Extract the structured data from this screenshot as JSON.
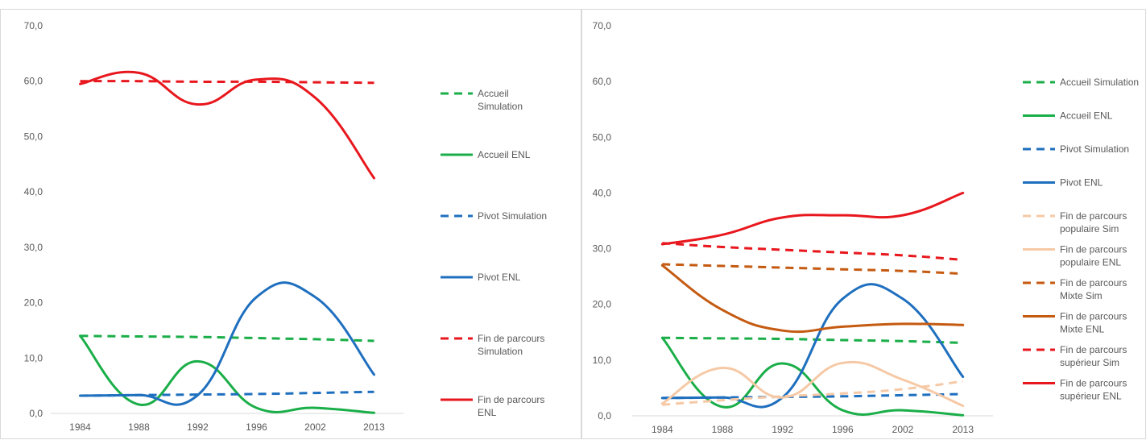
{
  "chart_data": [
    {
      "type": "line",
      "title": "",
      "xlabel": "",
      "ylabel": "",
      "categories": [
        "1984",
        "1988",
        "1992",
        "1996",
        "2002",
        "2013"
      ],
      "ylim": [
        0,
        70
      ],
      "yticks": [
        "0,0",
        "10,0",
        "20,0",
        "30,0",
        "40,0",
        "50,0",
        "60,0",
        "70,0"
      ],
      "grid": false,
      "legend_position": "right",
      "series": [
        {
          "name": "Accueil Simulation",
          "legend_lines": [
            "Accueil",
            "Simulation"
          ],
          "color": "#1aae48",
          "dashed": true,
          "values": [
            14.0,
            13.9,
            13.8,
            13.6,
            13.4,
            13.1
          ]
        },
        {
          "name": "Accueil ENL",
          "legend_lines": [
            "Accueil ENL"
          ],
          "color": "#1aae48",
          "dashed": false,
          "values": [
            14.0,
            1.6,
            9.4,
            1.0,
            1.0,
            0.1
          ]
        },
        {
          "name": "Pivot Simulation",
          "legend_lines": [
            "Pivot Simulation"
          ],
          "color": "#1f6fbf",
          "dashed": true,
          "values": [
            3.2,
            3.3,
            3.4,
            3.5,
            3.7,
            3.9
          ]
        },
        {
          "name": "Pivot ENL",
          "legend_lines": [
            "Pivot ENL"
          ],
          "color": "#1f6fbf",
          "dashed": false,
          "values": [
            3.2,
            3.3,
            3.3,
            21.0,
            21.0,
            7.0
          ]
        },
        {
          "name": "Fin de parcours Simulation",
          "legend_lines": [
            "Fin de parcours",
            "Simulation"
          ],
          "color": "#e8171d",
          "dashed": true,
          "values": [
            60.0,
            60.0,
            59.9,
            59.9,
            59.8,
            59.7
          ]
        },
        {
          "name": "Fin de parcours ENL",
          "legend_lines": [
            "Fin de parcours",
            "ENL"
          ],
          "color": "#e8171d",
          "dashed": false,
          "values": [
            59.5,
            61.5,
            55.8,
            60.3,
            57.0,
            42.5
          ]
        }
      ]
    },
    {
      "type": "line",
      "title": "",
      "xlabel": "",
      "ylabel": "",
      "categories": [
        "1984",
        "1988",
        "1992",
        "1996",
        "2002",
        "2013"
      ],
      "ylim": [
        0,
        70
      ],
      "yticks": [
        "0,0",
        "10,0",
        "20,0",
        "30,0",
        "40,0",
        "50,0",
        "60,0",
        "70,0"
      ],
      "grid": false,
      "legend_position": "right",
      "series": [
        {
          "name": "Accueil Simulation",
          "legend_lines": [
            "Accueil Simulation"
          ],
          "color": "#1aae48",
          "dashed": true,
          "values": [
            14.0,
            13.9,
            13.8,
            13.6,
            13.4,
            13.1
          ]
        },
        {
          "name": "Accueil ENL",
          "legend_lines": [
            "Accueil ENL"
          ],
          "color": "#1aae48",
          "dashed": false,
          "values": [
            14.0,
            1.6,
            9.4,
            1.0,
            1.0,
            0.1
          ]
        },
        {
          "name": "Pivot Simulation",
          "legend_lines": [
            "Pivot Simulation"
          ],
          "color": "#1f6fbf",
          "dashed": true,
          "values": [
            3.2,
            3.3,
            3.4,
            3.5,
            3.7,
            3.9
          ]
        },
        {
          "name": "Pivot ENL",
          "legend_lines": [
            "Pivot ENL"
          ],
          "color": "#1f6fbf",
          "dashed": false,
          "values": [
            3.2,
            3.3,
            3.3,
            21.0,
            21.0,
            7.0
          ]
        },
        {
          "name": "Fin de parcours populaire Sim",
          "legend_lines": [
            "Fin de parcours",
            "populaire Sim"
          ],
          "color": "#f6c9a6",
          "dashed": true,
          "values": [
            2.0,
            2.8,
            3.5,
            4.0,
            4.8,
            6.2
          ]
        },
        {
          "name": "Fin de parcours populaire ENL",
          "legend_lines": [
            "Fin de parcours",
            "populaire ENL"
          ],
          "color": "#f6c9a6",
          "dashed": false,
          "values": [
            2.2,
            8.6,
            3.3,
            9.5,
            6.5,
            1.8
          ]
        },
        {
          "name": "Fin de parcours Mixte Sim",
          "legend_lines": [
            "Fin de parcours",
            "Mixte Sim"
          ],
          "color": "#c55a11",
          "dashed": true,
          "values": [
            27.2,
            26.9,
            26.6,
            26.3,
            26.0,
            25.5
          ]
        },
        {
          "name": "Fin de parcours Mixte ENL",
          "legend_lines": [
            "Fin de parcours",
            "Mixte ENL"
          ],
          "color": "#c55a11",
          "dashed": false,
          "values": [
            27.0,
            19.0,
            15.3,
            16.0,
            16.5,
            16.3
          ]
        },
        {
          "name": "Fin de parcours supérieur Sim",
          "legend_lines": [
            "Fin de parcours",
            "supérieur Sim"
          ],
          "color": "#e8171d",
          "dashed": true,
          "values": [
            31.0,
            30.3,
            29.8,
            29.3,
            28.8,
            28.0
          ]
        },
        {
          "name": "Fin de parcours supérieur ENL",
          "legend_lines": [
            "Fin de parcours",
            "supérieur ENL"
          ],
          "color": "#e8171d",
          "dashed": false,
          "values": [
            30.8,
            32.5,
            35.6,
            36.0,
            36.0,
            40.0
          ]
        }
      ]
    }
  ]
}
